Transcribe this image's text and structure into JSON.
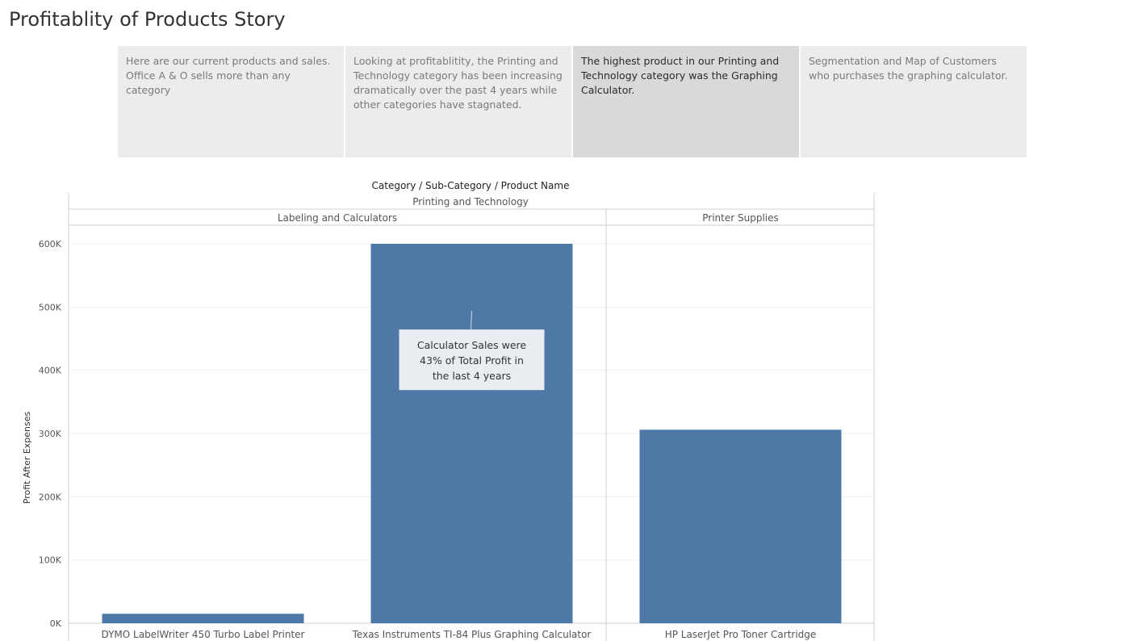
{
  "story": {
    "title": "Profitablity of Products Story",
    "points": [
      "Here are our current products and sales. Office A & O sells more than any category",
      "Looking at profitablitity, the Printing and Technology category has been increasing dramatically over the past 4 years while other categories have stagnated.",
      "The highest product in our Printing and Technology category was the Graphing Calculator.",
      "Segmentation and Map of Customers who purchases the graphing calculator."
    ],
    "active_point": 2
  },
  "chart_data": {
    "type": "bar",
    "header_title": "Category / Sub-Category / Product Name",
    "category": "Printing and Technology",
    "ylabel": "Profit After Expenses",
    "ylim": [
      0,
      600000
    ],
    "yticks": [
      "0K",
      "100K",
      "200K",
      "300K",
      "400K",
      "500K",
      "600K"
    ],
    "ytick_values": [
      0,
      100000,
      200000,
      300000,
      400000,
      500000,
      600000
    ],
    "groups": [
      {
        "name": "Labeling and Calculators",
        "bars": [
          {
            "label": "DYMO LabelWriter 450 Turbo Label Printer",
            "value": 15000
          },
          {
            "label": "Texas Instruments TI-84 Plus Graphing Calculator",
            "value": 600000
          }
        ]
      },
      {
        "name": "Printer Supplies",
        "bars": [
          {
            "label": "HP LaserJet Pro Toner Cartridge",
            "value": 306000
          }
        ]
      }
    ],
    "annotation": {
      "text": "Calculator Sales were 43% of Total Profit in the last 4 years",
      "target_bar": "Texas Instruments TI-84 Plus Graphing Calculator",
      "target_value": 490000
    },
    "bar_color": "#4e79a7",
    "grid": true
  }
}
